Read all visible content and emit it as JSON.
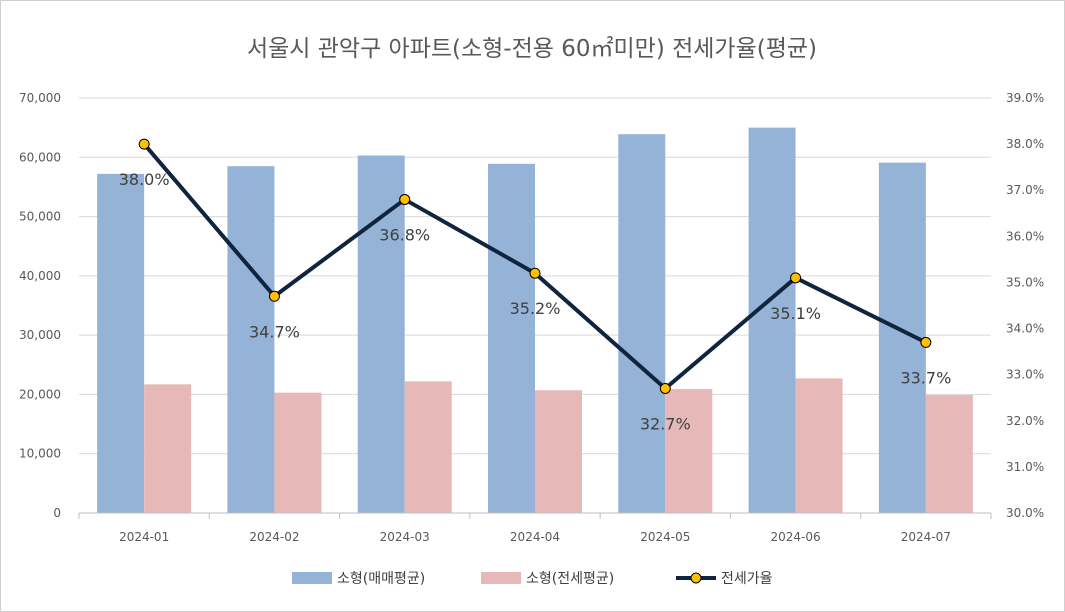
{
  "chart_data": {
    "type": "bar",
    "title": "서울시 관악구 아파트(소형-전용 60㎡미만) 전세가율(평균)",
    "categories": [
      "2024-01",
      "2024-02",
      "2024-03",
      "2024-04",
      "2024-05",
      "2024-06",
      "2024-07"
    ],
    "series": [
      {
        "name": "소형(매매평균)",
        "type": "bar",
        "axis": "left",
        "color": "#95b3d7",
        "values": [
          57200,
          58500,
          60300,
          58900,
          63900,
          65000,
          59100
        ]
      },
      {
        "name": "소형(전세평균)",
        "type": "bar",
        "axis": "left",
        "color": "#e6b9b8",
        "values": [
          21700,
          20300,
          22200,
          20700,
          20900,
          22700,
          19900
        ]
      },
      {
        "name": "전세가율",
        "type": "line",
        "axis": "right",
        "color": "#0f243e",
        "marker_color": "#ffc000",
        "values": [
          38.0,
          34.7,
          36.8,
          35.2,
          32.7,
          35.1,
          33.7
        ],
        "data_labels": [
          "38.0%",
          "34.7%",
          "36.8%",
          "35.2%",
          "32.7%",
          "35.1%",
          "33.7%"
        ]
      }
    ],
    "y_left": {
      "min": 0,
      "max": 70000,
      "step": 10000,
      "tick_labels": [
        "0",
        "10,000",
        "20,000",
        "30,000",
        "40,000",
        "50,000",
        "60,000",
        "70,000"
      ]
    },
    "y_right": {
      "min": 30.0,
      "max": 39.0,
      "step": 1.0,
      "tick_labels": [
        "30.0%",
        "31.0%",
        "32.0%",
        "33.0%",
        "34.0%",
        "35.0%",
        "36.0%",
        "37.0%",
        "38.0%",
        "39.0%"
      ]
    },
    "grid": true,
    "legend": "bottom"
  }
}
